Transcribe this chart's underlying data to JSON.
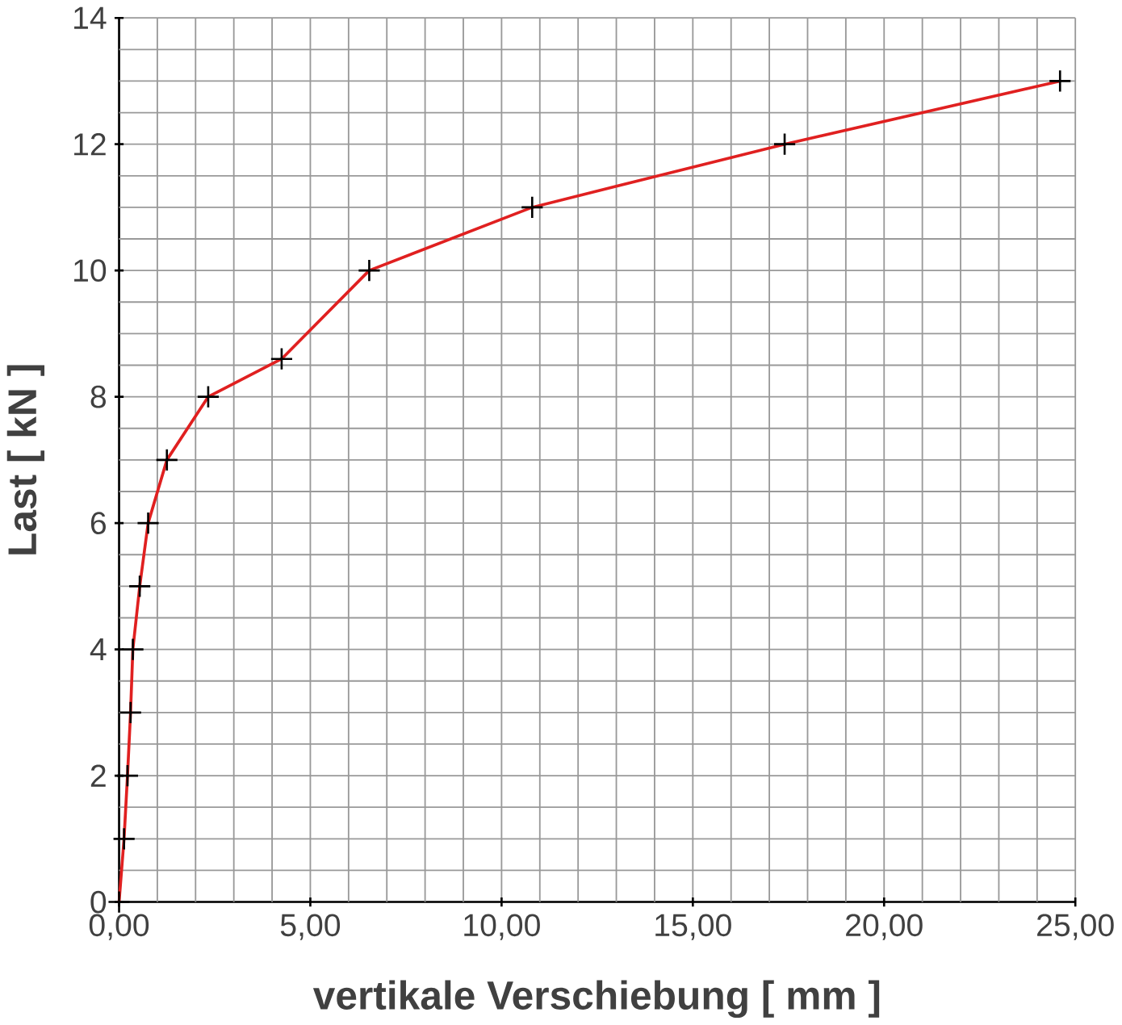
{
  "chart_data": {
    "type": "line",
    "xlabel": "vertikale Verschiebung [ mm ]",
    "ylabel": "Last [ kN ]",
    "x": [
      0,
      0.13,
      0.22,
      0.3,
      0.36,
      0.54,
      0.76,
      1.25,
      2.33,
      4.25,
      6.54,
      10.8,
      17.4,
      24.6
    ],
    "values": [
      0,
      1,
      2,
      3,
      4,
      5,
      6,
      7,
      8,
      8.6,
      10,
      11,
      12,
      13
    ],
    "color": "#e02020",
    "marker": "cross",
    "line_style": "solid",
    "grid": true,
    "xlim": [
      0,
      25
    ],
    "ylim": [
      0,
      14
    ],
    "xticks": [
      {
        "value": 0,
        "label": "0,00"
      },
      {
        "value": 1,
        "label": null
      },
      {
        "value": 2,
        "label": null
      },
      {
        "value": 3,
        "label": null
      },
      {
        "value": 4,
        "label": null
      },
      {
        "value": 5,
        "label": "5,00"
      },
      {
        "value": 6,
        "label": null
      },
      {
        "value": 7,
        "label": null
      },
      {
        "value": 8,
        "label": null
      },
      {
        "value": 9,
        "label": null
      },
      {
        "value": 10,
        "label": "10,00"
      },
      {
        "value": 11,
        "label": null
      },
      {
        "value": 12,
        "label": null
      },
      {
        "value": 13,
        "label": null
      },
      {
        "value": 14,
        "label": null
      },
      {
        "value": 15,
        "label": "15,00"
      },
      {
        "value": 16,
        "label": null
      },
      {
        "value": 17,
        "label": null
      },
      {
        "value": 18,
        "label": null
      },
      {
        "value": 19,
        "label": null
      },
      {
        "value": 20,
        "label": "20,00"
      },
      {
        "value": 21,
        "label": null
      },
      {
        "value": 22,
        "label": null
      },
      {
        "value": 23,
        "label": null
      },
      {
        "value": 24,
        "label": null
      },
      {
        "value": 25,
        "label": "25,00"
      }
    ],
    "yticks": [
      0,
      {
        "value": 0.5,
        "label": null
      },
      {
        "value": 1,
        "label": null
      },
      {
        "value": 1.5,
        "label": null
      },
      2,
      {
        "value": 2.5,
        "label": null
      },
      {
        "value": 3,
        "label": null
      },
      {
        "value": 3.5,
        "label": null
      },
      4,
      {
        "value": 4.5,
        "label": null
      },
      {
        "value": 5,
        "label": null
      },
      {
        "value": 5.5,
        "label": null
      },
      6,
      {
        "value": 6.5,
        "label": null
      },
      {
        "value": 7,
        "label": null
      },
      {
        "value": 7.5,
        "label": null
      },
      8,
      {
        "value": 8.5,
        "label": null
      },
      {
        "value": 9,
        "label": null
      },
      {
        "value": 9.5,
        "label": null
      },
      10,
      {
        "value": 10.5,
        "label": null
      },
      {
        "value": 11,
        "label": null
      },
      {
        "value": 11.5,
        "label": null
      },
      12,
      {
        "value": 12.5,
        "label": null
      },
      {
        "value": 13,
        "label": null
      },
      {
        "value": 13.5,
        "label": null
      },
      14
    ]
  }
}
